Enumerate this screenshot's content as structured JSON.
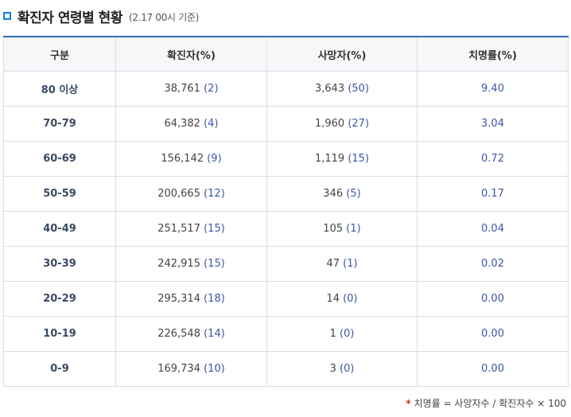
{
  "header": {
    "title": "확진자 연령별 현황",
    "subtitle": "(2.17 00시 기준)"
  },
  "table": {
    "columns": [
      "구분",
      "확진자(%)",
      "사망자(%)",
      "치명률(%)"
    ],
    "rows": [
      {
        "age": "80 이상",
        "cases": "38,761",
        "cases_pct": "(2)",
        "deaths": "3,643",
        "deaths_pct": "(50)",
        "rate": "9.40"
      },
      {
        "age": "70-79",
        "cases": "64,382",
        "cases_pct": "(4)",
        "deaths": "1,960",
        "deaths_pct": "(27)",
        "rate": "3.04"
      },
      {
        "age": "60-69",
        "cases": "156,142",
        "cases_pct": "(9)",
        "deaths": "1,119",
        "deaths_pct": "(15)",
        "rate": "0.72"
      },
      {
        "age": "50-59",
        "cases": "200,665",
        "cases_pct": "(12)",
        "deaths": "346",
        "deaths_pct": "(5)",
        "rate": "0.17"
      },
      {
        "age": "40-49",
        "cases": "251,517",
        "cases_pct": "(15)",
        "deaths": "105",
        "deaths_pct": "(1)",
        "rate": "0.04"
      },
      {
        "age": "30-39",
        "cases": "242,915",
        "cases_pct": "(15)",
        "deaths": "47",
        "deaths_pct": "(1)",
        "rate": "0.02"
      },
      {
        "age": "20-29",
        "cases": "295,314",
        "cases_pct": "(18)",
        "deaths": "14",
        "deaths_pct": "(0)",
        "rate": "0.00"
      },
      {
        "age": "10-19",
        "cases": "226,548",
        "cases_pct": "(14)",
        "deaths": "1",
        "deaths_pct": "(0)",
        "rate": "0.00"
      },
      {
        "age": "0-9",
        "cases": "169,734",
        "cases_pct": "(10)",
        "deaths": "3",
        "deaths_pct": "(0)",
        "rate": "0.00"
      }
    ]
  },
  "footnote": {
    "star": "*",
    "text": "치명률 = 사망자수 / 확진자수 × 100"
  },
  "colors": {
    "accent": "#2f6db5",
    "pct_text": "#3b56a6",
    "star": "#e02020"
  }
}
